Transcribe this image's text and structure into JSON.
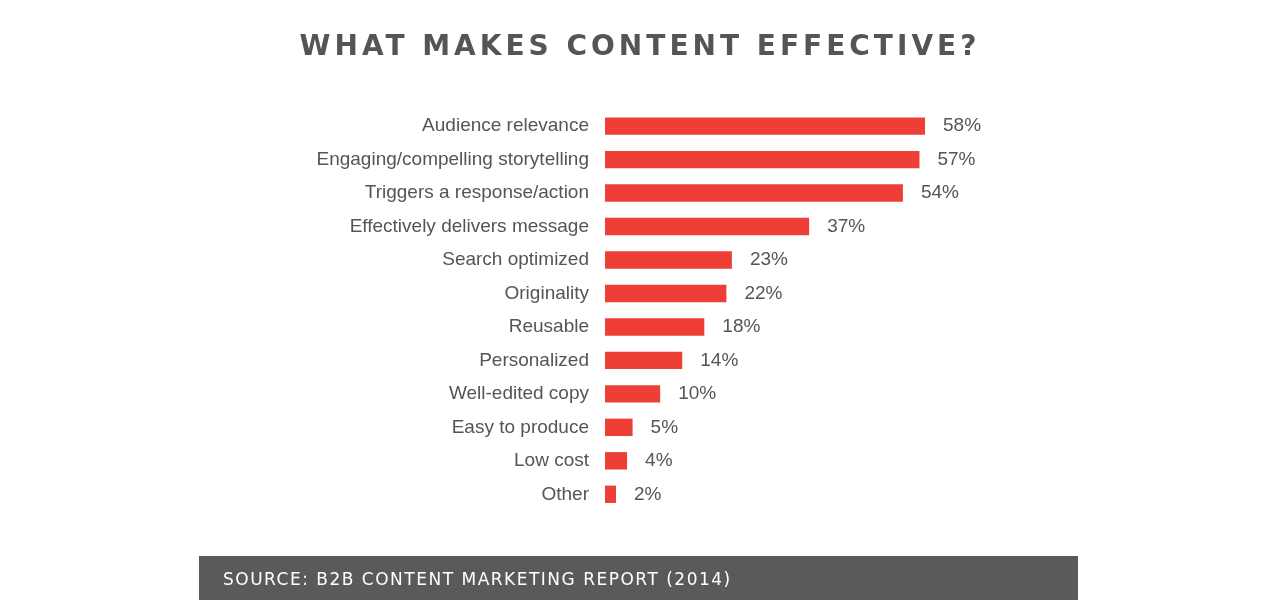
{
  "chart_data": {
    "type": "bar",
    "orientation": "horizontal",
    "title": "WHAT MAKES CONTENT EFFECTIVE?",
    "categories": [
      "Audience relevance",
      "Engaging/compelling storytelling",
      "Triggers a response/action",
      "Effectively delivers message",
      "Search optimized",
      "Originality",
      "Reusable",
      "Personalized",
      "Well-edited copy",
      "Easy to produce",
      "Low cost",
      "Other"
    ],
    "values": [
      58,
      57,
      54,
      37,
      23,
      22,
      18,
      14,
      10,
      5,
      4,
      2
    ],
    "value_labels": [
      "58%",
      "57%",
      "54%",
      "37%",
      "23%",
      "22%",
      "18%",
      "14%",
      "10%",
      "5%",
      "4%",
      "2%"
    ],
    "color": "#ee3f37",
    "annotations": [
      "SOURCE: B2B CONTENT MARKETING REPORT (2014)"
    ]
  }
}
